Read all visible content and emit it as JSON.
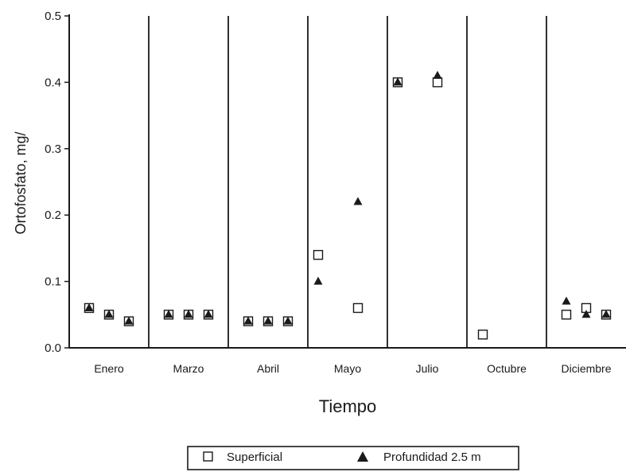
{
  "chart_data": {
    "type": "scatter",
    "title": "",
    "xlabel": "Tiempo",
    "ylabel": "Ortofosfato, mg/",
    "ylim": [
      0.0,
      0.5
    ],
    "yticks": [
      "0.0",
      "0.1",
      "0.2",
      "0.3",
      "0.4",
      "0.5"
    ],
    "categories": [
      "Enero",
      "Marzo",
      "Abril",
      "Mayo",
      "Julio",
      "Octubre",
      "Diciembre"
    ],
    "grid": false,
    "legend_position": "bottom",
    "series": [
      {
        "name": "Superficial",
        "marker": "open-square",
        "color": "#1a1a1a",
        "points": [
          {
            "month": "Enero",
            "sample": 1,
            "y": 0.06
          },
          {
            "month": "Enero",
            "sample": 2,
            "y": 0.05
          },
          {
            "month": "Enero",
            "sample": 3,
            "y": 0.04
          },
          {
            "month": "Marzo",
            "sample": 1,
            "y": 0.05
          },
          {
            "month": "Marzo",
            "sample": 2,
            "y": 0.05
          },
          {
            "month": "Marzo",
            "sample": 3,
            "y": 0.05
          },
          {
            "month": "Abril",
            "sample": 1,
            "y": 0.04
          },
          {
            "month": "Abril",
            "sample": 2,
            "y": 0.04
          },
          {
            "month": "Abril",
            "sample": 3,
            "y": 0.04
          },
          {
            "month": "Mayo",
            "sample": 1,
            "y": 0.14
          },
          {
            "month": "Mayo",
            "sample": 2,
            "y": 0.06
          },
          {
            "month": "Julio",
            "sample": 1,
            "y": 0.4
          },
          {
            "month": "Julio",
            "sample": 2,
            "y": 0.4
          },
          {
            "month": "Octubre",
            "sample": 1,
            "y": 0.02
          },
          {
            "month": "Diciembre",
            "sample": 1,
            "y": 0.05
          },
          {
            "month": "Diciembre",
            "sample": 2,
            "y": 0.06
          },
          {
            "month": "Diciembre",
            "sample": 3,
            "y": 0.05
          }
        ]
      },
      {
        "name": "Profundidad 2.5 m",
        "marker": "filled-triangle",
        "color": "#1a1a1a",
        "points": [
          {
            "month": "Enero",
            "sample": 1,
            "y": 0.06
          },
          {
            "month": "Enero",
            "sample": 2,
            "y": 0.05
          },
          {
            "month": "Enero",
            "sample": 3,
            "y": 0.04
          },
          {
            "month": "Marzo",
            "sample": 1,
            "y": 0.05
          },
          {
            "month": "Marzo",
            "sample": 2,
            "y": 0.05
          },
          {
            "month": "Marzo",
            "sample": 3,
            "y": 0.05
          },
          {
            "month": "Abril",
            "sample": 1,
            "y": 0.04
          },
          {
            "month": "Abril",
            "sample": 2,
            "y": 0.04
          },
          {
            "month": "Abril",
            "sample": 3,
            "y": 0.04
          },
          {
            "month": "Mayo",
            "sample": 1,
            "y": 0.1
          },
          {
            "month": "Mayo",
            "sample": 2,
            "y": 0.22
          },
          {
            "month": "Julio",
            "sample": 1,
            "y": 0.4
          },
          {
            "month": "Julio",
            "sample": 2,
            "y": 0.41
          },
          {
            "month": "Diciembre",
            "sample": 1,
            "y": 0.07
          },
          {
            "month": "Diciembre",
            "sample": 2,
            "y": 0.05
          },
          {
            "month": "Diciembre",
            "sample": 3,
            "y": 0.05
          }
        ]
      }
    ]
  }
}
